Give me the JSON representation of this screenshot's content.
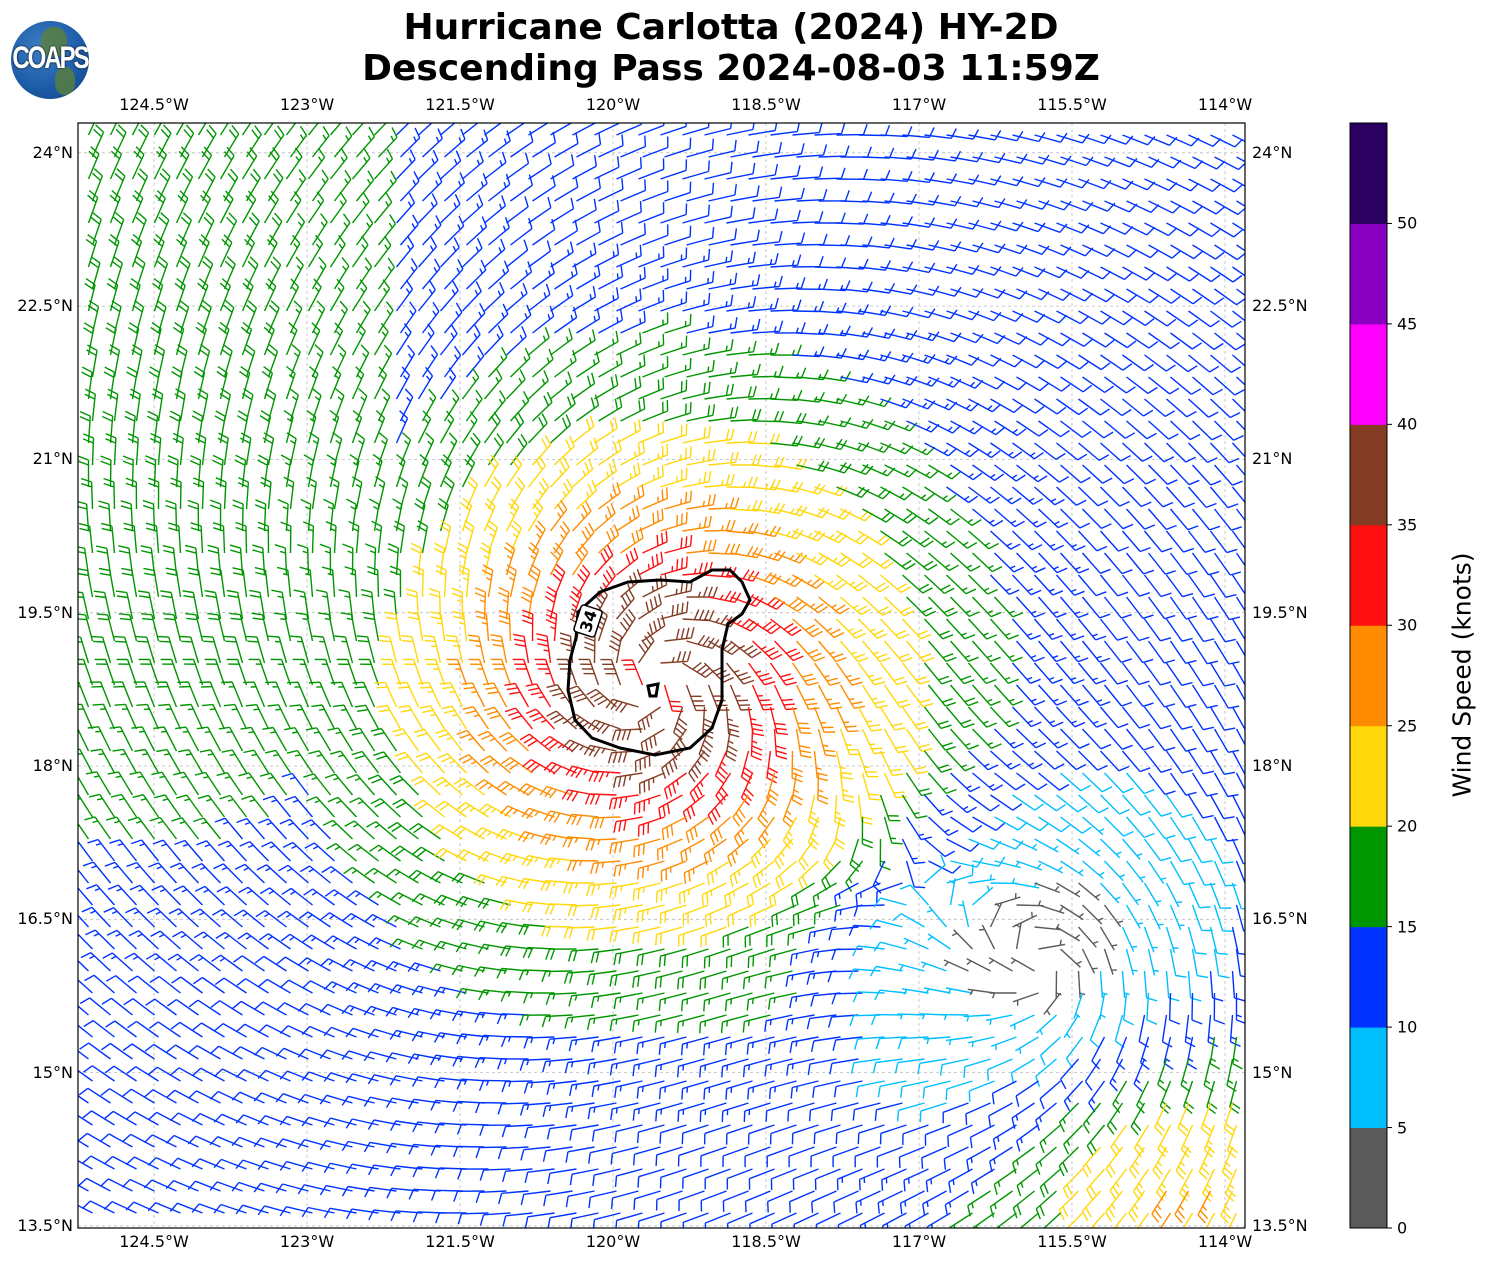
{
  "header": {
    "title_line1": "Hurricane Carlotta (2024) HY-2D",
    "title_line2": "Descending Pass 2024-08-03 11:59Z",
    "logo_text": "COAPS"
  },
  "chart_data": {
    "type": "wind-barb map",
    "title": "Hurricane Carlotta (2024) HY-2D Descending Pass 2024-08-03 11:59Z",
    "lon_ticks": [
      -124.5,
      -123,
      -121.5,
      -120,
      -118.5,
      -117,
      -115.5,
      -114
    ],
    "lon_tick_labels": [
      "124.5°W",
      "123°W",
      "121.5°W",
      "120°W",
      "118.5°W",
      "117°W",
      "115.5°W",
      "114°W"
    ],
    "lat_ticks": [
      24,
      22.5,
      21,
      19.5,
      18,
      16.5,
      15,
      13.5
    ],
    "lat_tick_labels": [
      "24°N",
      "22.5°N",
      "21°N",
      "19.5°N",
      "18°N",
      "16.5°N",
      "15°N",
      "13.5°N"
    ],
    "lon_range": [
      -125.35,
      -113.8
    ],
    "lat_range": [
      13.5,
      24.3
    ],
    "grid": true,
    "contour": {
      "level": 34,
      "label": "34",
      "color": "#000000"
    },
    "storm_center": {
      "lon": -119.6,
      "lat": 18.8
    },
    "secondary_low": {
      "lon": -115.7,
      "lat": 16.0
    },
    "colorbar": {
      "label": "Wind Speed (knots)",
      "ticks": [
        "0",
        "5",
        "10",
        "15",
        "20",
        "25",
        "30",
        "35",
        "40",
        "45",
        "50"
      ],
      "range": [
        0,
        55
      ],
      "bounds": [
        0,
        5,
        10,
        15,
        20,
        25,
        30,
        35,
        40,
        45,
        50,
        55
      ],
      "colors": [
        "#5a5a5a",
        "#00bfff",
        "#0033ff",
        "#009600",
        "#ffd70a",
        "#ff8c00",
        "#ff1010",
        "#843c24",
        "#ff00ff",
        "#8a00c0",
        "#2a0060"
      ]
    }
  }
}
